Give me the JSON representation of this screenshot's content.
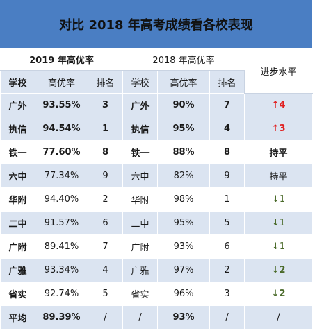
{
  "title": "对比 2018 年高考成绩看各校表现",
  "group_2019": "2019 年高优率",
  "group_2018": "2018 年高优率",
  "progress_header": "进步水平",
  "headers": {
    "school": "学校",
    "rate": "高优率",
    "rank": "排名"
  },
  "rows": [
    {
      "s19": "广外",
      "r19": "93.55%",
      "k19": "3",
      "s18": "广外",
      "r18": "90%",
      "k18": "7",
      "prog": "↑4"
    },
    {
      "s19": "执信",
      "r19": "94.54%",
      "k19": "1",
      "s18": "执信",
      "r18": "95%",
      "k18": "4",
      "prog": "↑3"
    },
    {
      "s19": "铁一",
      "r19": "77.60%",
      "k19": "8",
      "s18": "铁一",
      "r18": "88%",
      "k18": "8",
      "prog": "持平"
    },
    {
      "s19": "六中",
      "r19": "77.34%",
      "k19": "9",
      "s18": "六中",
      "r18": "82%",
      "k18": "9",
      "prog": "持平"
    },
    {
      "s19": "华附",
      "r19": "94.40%",
      "k19": "2",
      "s18": "华附",
      "r18": "98%",
      "k18": "1",
      "prog": "↓1"
    },
    {
      "s19": "二中",
      "r19": "91.57%",
      "k19": "6",
      "s18": "二中",
      "r18": "95%",
      "k18": "5",
      "prog": "↓1"
    },
    {
      "s19": "广附",
      "r19": "89.41%",
      "k19": "7",
      "s18": "广附",
      "r18": "93%",
      "k18": "6",
      "prog": "↓1"
    },
    {
      "s19": "广雅",
      "r19": "93.34%",
      "k19": "4",
      "s18": "广雅",
      "r18": "97%",
      "k18": "2",
      "prog": "↓2"
    },
    {
      "s19": "省实",
      "r19": "92.74%",
      "k19": "5",
      "s18": "省实",
      "r18": "96%",
      "k18": "3",
      "prog": "↓2"
    },
    {
      "s19": "平均",
      "r19": "89.39%",
      "k19": "/",
      "s18": "/",
      "r18": "93%",
      "k18": "/",
      "prog": "/"
    }
  ]
}
